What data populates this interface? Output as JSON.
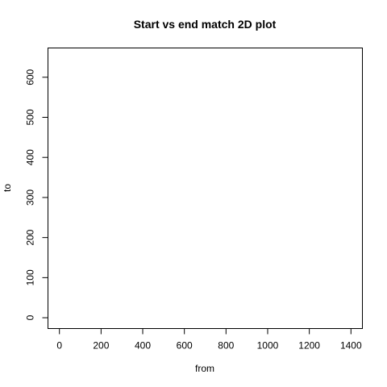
{
  "chart_data": {
    "type": "scatter",
    "title": "Start vs end match 2D plot",
    "xlabel": "from",
    "ylabel": "to",
    "xlim": [
      -55,
      1455
    ],
    "ylim": [
      -27,
      673
    ],
    "x_ticks": [
      0,
      200,
      400,
      600,
      800,
      1000,
      1200,
      1400
    ],
    "x_tick_labels": [
      "0",
      "200",
      "400",
      "600",
      "800",
      "1000",
      "1200",
      "1400"
    ],
    "y_ticks": [
      0,
      100,
      200,
      300,
      400,
      500,
      600
    ],
    "y_tick_labels": [
      "0",
      "100",
      "200",
      "300",
      "400",
      "500",
      "600"
    ],
    "grid": false,
    "series": [
      {
        "x": [],
        "y": []
      }
    ]
  }
}
